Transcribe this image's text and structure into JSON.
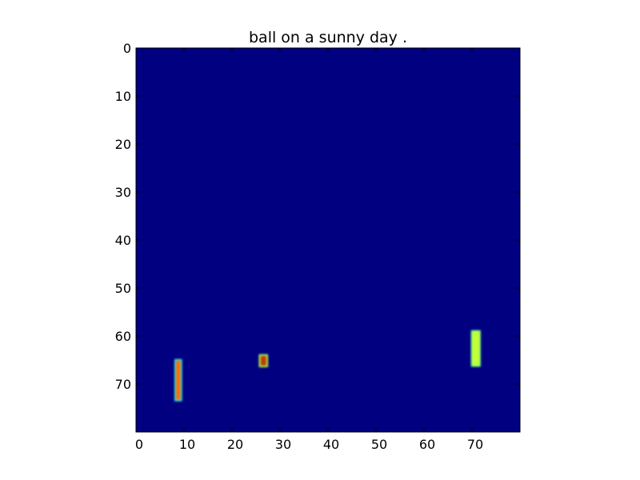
{
  "chart_data": {
    "type": "heatmap",
    "title": "ball on a sunny day .",
    "xlabel": "",
    "ylabel": "",
    "xlim": [
      0,
      80
    ],
    "ylim": [
      80,
      0
    ],
    "x_ticks": [
      "0",
      "10",
      "20",
      "30",
      "40",
      "50",
      "60",
      "70"
    ],
    "y_ticks": [
      "0",
      "10",
      "20",
      "30",
      "40",
      "50",
      "60",
      "70"
    ],
    "x_tick_values": [
      0,
      10,
      20,
      30,
      40,
      50,
      60,
      70
    ],
    "y_tick_values": [
      0,
      10,
      20,
      30,
      40,
      50,
      60,
      70
    ],
    "grid": false,
    "colormap": "jet",
    "background_value": 0,
    "background_color": "#000080",
    "blobs": [
      {
        "name": "left-bar",
        "x_range": [
          8,
          9.6
        ],
        "y_range": [
          64.8,
          73.6
        ],
        "value": 0.85,
        "core_color": "#ff6a00",
        "edge_color": "#33dddd"
      },
      {
        "name": "middle-bar",
        "x_range": [
          25.6,
          27.5
        ],
        "y_range": [
          63.8,
          66.5
        ],
        "value": 0.9,
        "core_color": "#c03c00",
        "edge_color": "#a8ff50"
      },
      {
        "name": "right-bar",
        "x_range": [
          69.8,
          71.8
        ],
        "y_range": [
          58.8,
          66.4
        ],
        "value": 0.65,
        "core_color": "#c8ff30",
        "edge_color": "#80ff80"
      }
    ]
  }
}
